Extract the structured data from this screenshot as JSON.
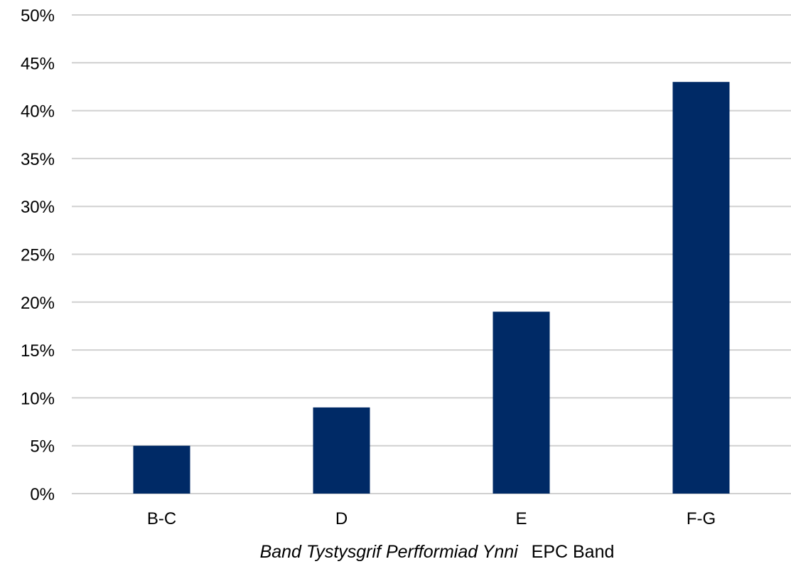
{
  "chart_data": {
    "type": "bar",
    "categories": [
      "B-C",
      "D",
      "E",
      "F-G"
    ],
    "values": [
      5,
      9,
      19,
      43
    ],
    "value_unit": "%",
    "title": "",
    "xlabel": {
      "welsh": "Band Tystysgrif Perfformiad Ynni",
      "english": "EPC Band"
    },
    "ylabel": "",
    "ylim": [
      0,
      50
    ],
    "y_ticks": [
      "0%",
      "5%",
      "10%",
      "15%",
      "20%",
      "25%",
      "30%",
      "35%",
      "40%",
      "45%",
      "50%"
    ],
    "grid": true,
    "legend": "none",
    "colors": {
      "bar": "#002a66",
      "grid": "#d0d0d0",
      "text": "#000000"
    }
  }
}
